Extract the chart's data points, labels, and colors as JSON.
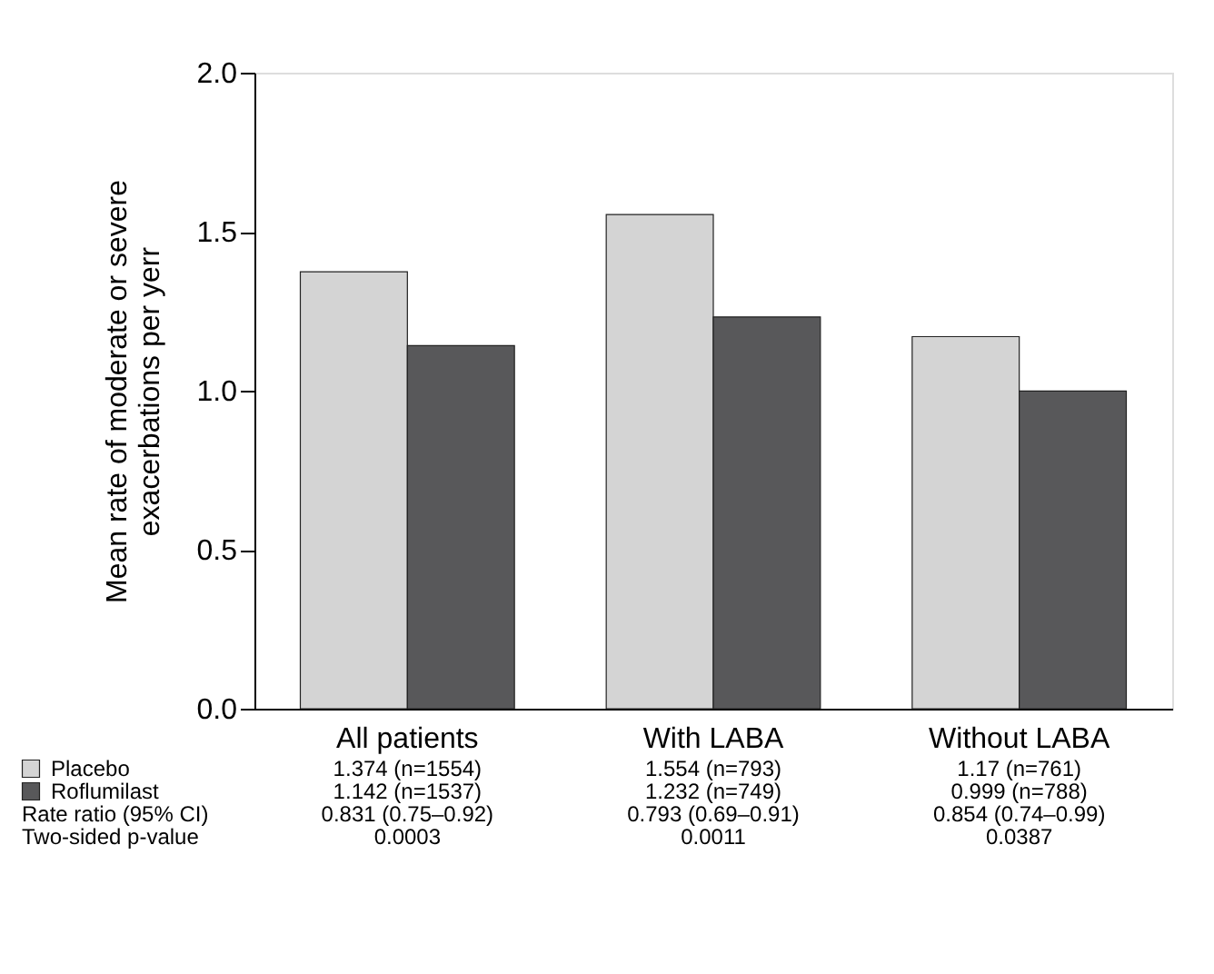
{
  "chart_data": {
    "type": "bar",
    "ylabel": "Mean rate of moderate or severe\nexacerbations per yerr",
    "categories": [
      "All patients",
      "With LABA",
      "Without LABA"
    ],
    "series": [
      {
        "name": "Placebo",
        "color": "#d4d4d4",
        "values": [
          1.374,
          1.554,
          1.17
        ],
        "value_labels": [
          "1.374 (n=1554)",
          "1.554 (n=793)",
          "1.17 (n=761)"
        ]
      },
      {
        "name": "Roflumilast",
        "color": "#58585a",
        "values": [
          1.142,
          1.232,
          0.999
        ],
        "value_labels": [
          "1.142 (n=1537)",
          "1.232 (n=749)",
          "0.999 (n=788)"
        ]
      }
    ],
    "ylim": [
      0,
      2
    ],
    "yticks": [
      {
        "value": 0,
        "label": "0.0"
      },
      0.5,
      {
        "value": 1,
        "label": "1.0"
      },
      1.5,
      {
        "value": 2,
        "label": "2.0"
      }
    ],
    "grid": false,
    "legend": "bottom left",
    "annotations": [
      "Rate ratio (95% CI)",
      "0.831 (0.75–0.92)",
      "0.793 (0.69–0.91)",
      "0.854 (0.74–0.99)",
      "Two-sided p-value",
      "0.0003",
      "0.0011",
      "0.0387"
    ]
  }
}
